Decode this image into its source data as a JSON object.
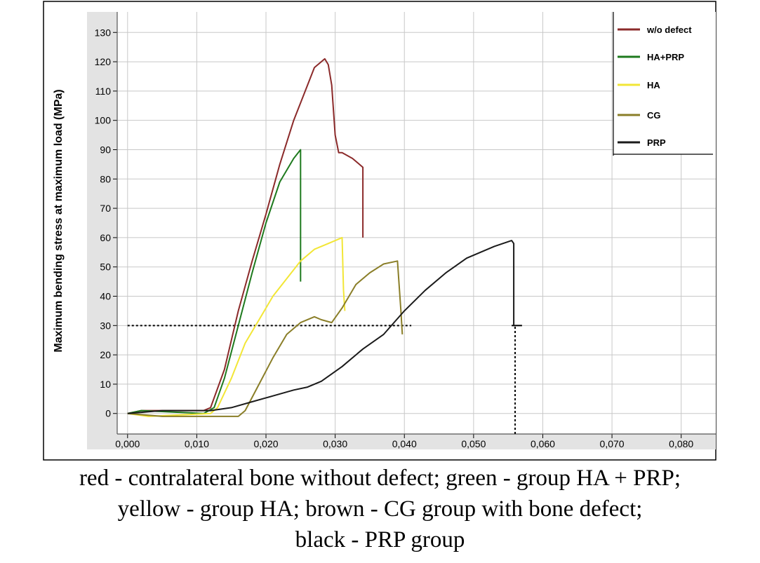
{
  "chart_data": {
    "type": "line",
    "title": "",
    "xlabel": "",
    "ylabel": "Maximum bending stress at maximum load (MPa)",
    "xlim": [
      -0.0015,
      0.085
    ],
    "ylim": [
      -7,
      137
    ],
    "x_ticks": [
      "0,000",
      "0,010",
      "0,020",
      "0,030",
      "0,040",
      "0,050",
      "0,060",
      "0,070",
      "0,080"
    ],
    "x_tick_values": [
      0,
      0.01,
      0.02,
      0.03,
      0.04,
      0.05,
      0.06,
      0.07,
      0.08
    ],
    "y_ticks": [
      "0",
      "10",
      "20",
      "30",
      "40",
      "50",
      "60",
      "70",
      "80",
      "90",
      "100",
      "110",
      "120",
      "130"
    ],
    "y_tick_values": [
      0,
      10,
      20,
      30,
      40,
      50,
      60,
      70,
      80,
      90,
      100,
      110,
      120,
      130
    ],
    "grid": true,
    "legend_position": "top-right",
    "series": [
      {
        "name": "w/o defect",
        "color": "#8b2a2a",
        "x": [
          0,
          0.002,
          0.011,
          0.012,
          0.014,
          0.016,
          0.018,
          0.02,
          0.022,
          0.024,
          0.026,
          0.027,
          0.0285,
          0.029,
          0.0295,
          0.03,
          0.0305,
          0.031,
          0.0325,
          0.034,
          0.034
        ],
        "y": [
          0,
          1,
          1,
          2,
          15,
          35,
          52,
          68,
          85,
          100,
          112,
          118,
          121,
          119,
          112,
          95,
          89,
          89,
          87,
          84,
          60
        ]
      },
      {
        "name": "HA+PRP",
        "color": "#1e7a1e",
        "x": [
          0,
          0.002,
          0.011,
          0.0125,
          0.014,
          0.016,
          0.018,
          0.02,
          0.022,
          0.024,
          0.025,
          0.025
        ],
        "y": [
          0,
          1,
          0,
          2,
          12,
          30,
          48,
          65,
          79,
          87,
          90,
          45
        ]
      },
      {
        "name": "HA",
        "color": "#f2e636",
        "x": [
          0,
          0.003,
          0.012,
          0.013,
          0.015,
          0.017,
          0.019,
          0.021,
          0.023,
          0.025,
          0.027,
          0.029,
          0.031,
          0.0312,
          0.0314
        ],
        "y": [
          0,
          -1,
          0,
          2,
          12,
          24,
          32,
          40,
          46,
          52,
          56,
          58,
          60,
          42,
          35
        ]
      },
      {
        "name": "CG",
        "color": "#8a7e28",
        "x": [
          0,
          0.005,
          0.014,
          0.016,
          0.017,
          0.019,
          0.021,
          0.023,
          0.025,
          0.027,
          0.028,
          0.0295,
          0.031,
          0.033,
          0.035,
          0.037,
          0.039,
          0.0395,
          0.0397
        ],
        "y": [
          0,
          -1,
          -1,
          -1,
          1,
          10,
          19,
          27,
          31,
          33,
          32,
          31,
          36,
          44,
          48,
          51,
          52,
          35,
          27
        ]
      },
      {
        "name": "PRP",
        "color": "#1a1a1a",
        "x": [
          0,
          0.005,
          0.012,
          0.015,
          0.018,
          0.021,
          0.024,
          0.026,
          0.028,
          0.031,
          0.034,
          0.037,
          0.04,
          0.043,
          0.046,
          0.049,
          0.051,
          0.053,
          0.0555,
          0.0558,
          0.0558
        ],
        "y": [
          0,
          1,
          1,
          2,
          4,
          6,
          8,
          9,
          11,
          16,
          22,
          27,
          35,
          42,
          48,
          53,
          55,
          57,
          59,
          58,
          30
        ]
      }
    ],
    "annotations": [
      {
        "type": "dashed-horizontal",
        "y": 30,
        "x_from": 0,
        "x_to": 0.041
      },
      {
        "type": "dashed-vertical",
        "x": 0.056,
        "y_from": -7,
        "y_to": 30
      },
      {
        "type": "tick-mark",
        "y": 30,
        "x_from": 0.0555,
        "x_to": 0.057
      }
    ]
  },
  "caption": {
    "line1": "red - contralateral bone without defect; green - group HA + PRP;",
    "line2": "yellow - group HA; brown - CG group with bone defect;",
    "line3": "black - PRP group"
  },
  "colors": {
    "plot_background": "#ffffff",
    "outer_background": "#e3e3e3",
    "grid": "#c8c8c8"
  }
}
